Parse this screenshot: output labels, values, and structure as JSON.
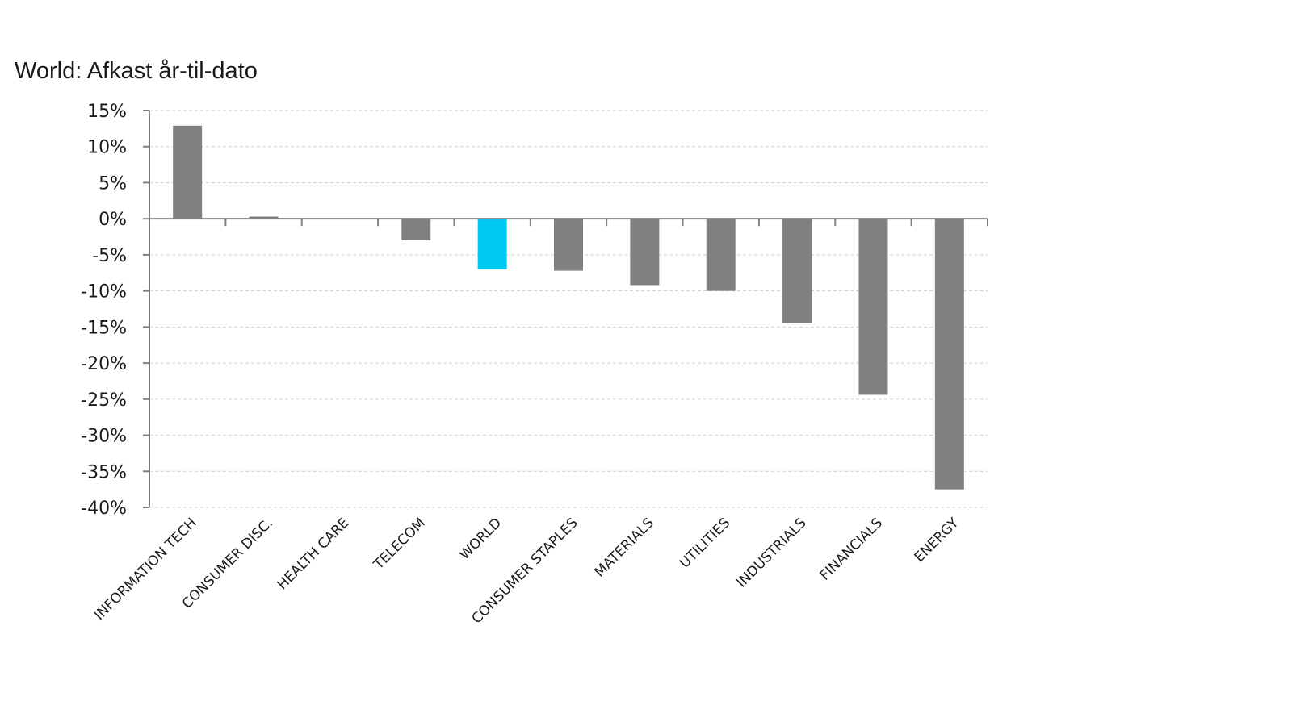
{
  "chart_data": {
    "type": "bar",
    "title": "World: Afkast år-til-dato",
    "xlabel": "",
    "ylabel": "",
    "categories": [
      "INFORMATION TECH",
      "CONSUMER DISC.",
      "HEALTH CARE",
      "TELECOM",
      "WORLD",
      "CONSUMER STAPLES",
      "MATERIALS",
      "UTILITIES",
      "INDUSTRIALS",
      "FINANCIALS",
      "ENERGY"
    ],
    "values": [
      12.9,
      0.3,
      0.0,
      -3.0,
      -7.0,
      -7.2,
      -9.2,
      -10.0,
      -14.4,
      -24.4,
      -37.5
    ],
    "ylim": [
      -40,
      15
    ],
    "yticks": [
      15,
      10,
      5,
      0,
      -5,
      -10,
      -15,
      -20,
      -25,
      -30,
      -35,
      -40
    ],
    "ytick_labels": [
      "15%",
      "10%",
      "5%",
      "0%",
      "-5%",
      "-10%",
      "-15%",
      "-20%",
      "-25%",
      "-30%",
      "-35%",
      "-40%"
    ],
    "grid": true,
    "colors": {
      "default_bar": "#808080",
      "highlight_bar": "#00c8f5",
      "axis": "#808080",
      "grid": "#d0d0d0"
    },
    "highlight_category": "WORLD"
  }
}
